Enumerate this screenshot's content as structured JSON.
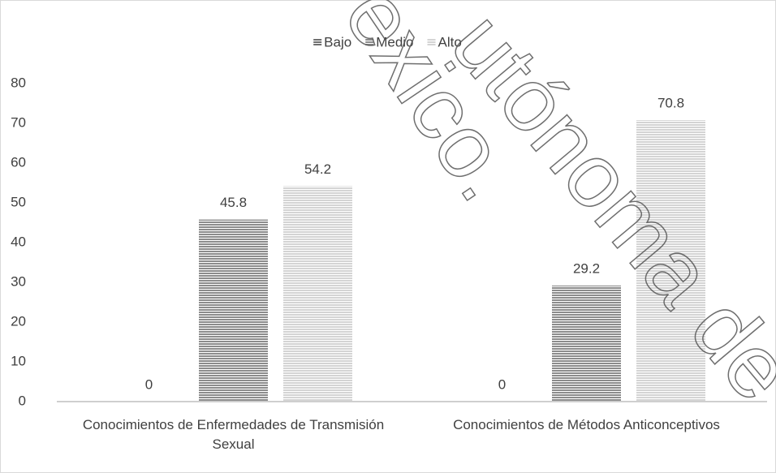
{
  "chart_data": {
    "type": "bar",
    "categories": [
      "Conocimientos de Enfermedades de Transmisión Sexual",
      "Conocimientos de Métodos Anticonceptivos"
    ],
    "series": [
      {
        "name": "Bajo",
        "color": "#6f6f6f",
        "values": [
          0,
          0
        ]
      },
      {
        "name": "Medio",
        "color": "#8c8c8c",
        "values": [
          45.8,
          29.2
        ]
      },
      {
        "name": "Alto",
        "color": "#d4d4d4",
        "values": [
          54.2,
          70.8
        ]
      }
    ],
    "ylim": [
      0,
      80
    ],
    "yticks": [
      0,
      10,
      20,
      30,
      40,
      50,
      60,
      70,
      80
    ],
    "grid": false,
    "legend": "top",
    "watermark": [
      "exico.",
      "utónoma de"
    ]
  }
}
